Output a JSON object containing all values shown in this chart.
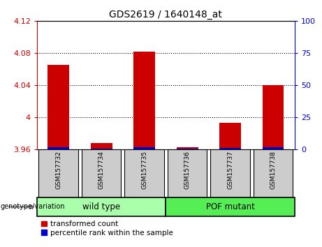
{
  "title": "GDS2619 / 1640148_at",
  "samples": [
    "GSM157732",
    "GSM157734",
    "GSM157735",
    "GSM157736",
    "GSM157737",
    "GSM157738"
  ],
  "red_values": [
    4.065,
    3.968,
    4.082,
    3.963,
    3.993,
    4.04
  ],
  "blue_values": [
    3.963,
    3.961,
    3.963,
    3.961,
    3.962,
    3.963
  ],
  "ylim_left": [
    3.96,
    4.12
  ],
  "ylim_right": [
    0,
    100
  ],
  "yticks_left": [
    3.96,
    4.0,
    4.04,
    4.08,
    4.12
  ],
  "yticks_right": [
    0,
    25,
    50,
    75,
    100
  ],
  "ytick_labels_left": [
    "3.96",
    "4",
    "4.04",
    "4.08",
    "4.12"
  ],
  "ytick_labels_right": [
    "0",
    "25",
    "50",
    "75",
    "100"
  ],
  "group1_label": "wild type",
  "group2_label": "POF mutant",
  "legend_red": "transformed count",
  "legend_blue": "percentile rank within the sample",
  "genotype_label": "genotype/variation",
  "bar_width": 0.5,
  "red_color": "#cc0000",
  "blue_color": "#0000cc",
  "group1_color": "#aaffaa",
  "group2_color": "#55ee55",
  "tick_bg_color": "#cccccc",
  "plot_bg_color": "#ffffff"
}
